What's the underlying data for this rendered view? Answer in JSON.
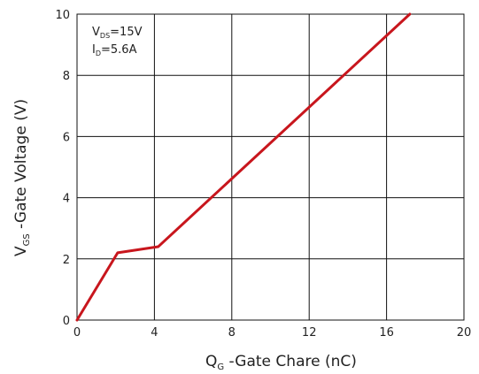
{
  "chart_data": {
    "type": "line",
    "xlabel": {
      "main": "Q",
      "sub": "G",
      "rest": " -Gate Chare (nC)"
    },
    "ylabel": {
      "main": "V",
      "sub": "GS",
      "rest": " -Gate Voltage (V)"
    },
    "xlim": [
      0,
      20
    ],
    "ylim": [
      0,
      10
    ],
    "xticks": [
      "0",
      "4",
      "8",
      "12",
      "16",
      "20"
    ],
    "yticks": [
      "0",
      "2",
      "4",
      "6",
      "8",
      "10"
    ],
    "grid": true,
    "conditions": [
      {
        "main": "V",
        "sub": "DS",
        "rest": "=15V"
      },
      {
        "main": "I",
        "sub": "D",
        "rest": "=5.6A"
      }
    ],
    "series": [
      {
        "color": "#c8161d",
        "x": [
          0,
          2.1,
          4.2,
          17.2
        ],
        "y": [
          0,
          2.2,
          2.4,
          10.0
        ]
      }
    ]
  }
}
